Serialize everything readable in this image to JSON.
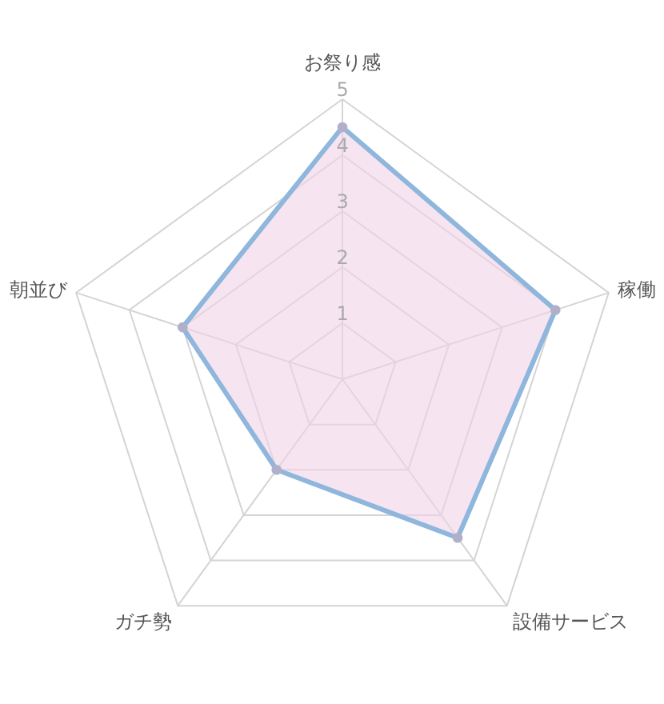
{
  "chart_data": {
    "type": "radar",
    "categories": [
      "お祭り感",
      "稼働",
      "設備サービス",
      "ガチ勢",
      "朝並び"
    ],
    "series": [
      {
        "color": "#8fb6dc",
        "values": [
          4.5,
          4,
          3.5,
          2,
          3
        ]
      }
    ],
    "ylim": [
      0,
      5
    ],
    "yticks": [
      1,
      2,
      3,
      4,
      5
    ],
    "grid": true,
    "marker": "circle"
  }
}
